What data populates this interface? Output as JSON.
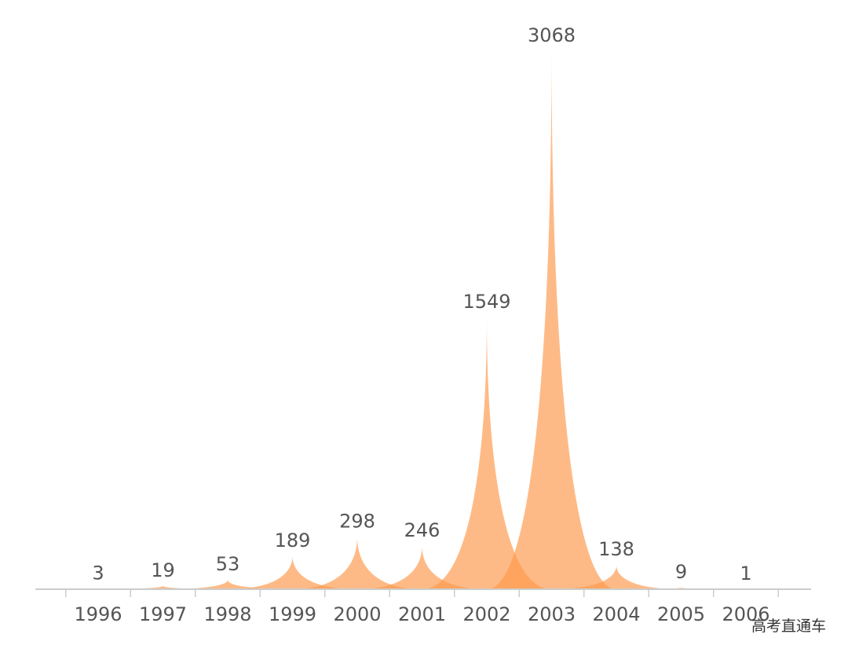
{
  "chart_data": {
    "type": "area",
    "categories": [
      "1996",
      "1997",
      "1998",
      "1999",
      "2000",
      "2001",
      "2002",
      "2003",
      "2004",
      "2005",
      "2006"
    ],
    "values": [
      3,
      19,
      53,
      189,
      298,
      246,
      1549,
      3068,
      138,
      9,
      1
    ],
    "title": "",
    "xlabel": "",
    "ylabel": "",
    "ylim": [
      0,
      3068
    ],
    "grid": false,
    "legend": "none",
    "colors": {
      "fill": "#fd9a4c",
      "axis": "#cccccc",
      "text": "#555555"
    }
  },
  "watermark": "高考直通车"
}
